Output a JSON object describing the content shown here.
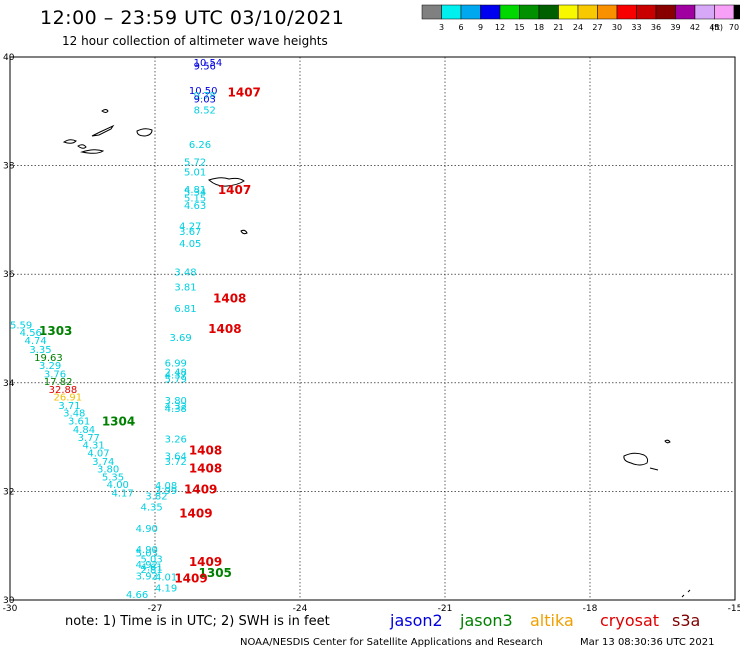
{
  "header": {
    "title": "12:00 – 23:59 UTC 03/10/2021",
    "subtitle": "12 hour collection of altimeter wave heights"
  },
  "legend": {
    "colors": [
      "#808080",
      "#00f0f0",
      "#00a8f0",
      "#0000f0",
      "#00d800",
      "#009000",
      "#006000",
      "#f8f800",
      "#f8c800",
      "#f89000",
      "#f80000",
      "#c80000",
      "#880000",
      "#a000a0",
      "#d8a8f8",
      "#f8a0f8",
      "#000000"
    ],
    "labels": [
      "3",
      "6",
      "9",
      "12",
      "15",
      "18",
      "21",
      "24",
      "27",
      "30",
      "33",
      "36",
      "39",
      "42",
      "45",
      "70"
    ],
    "unit": "(ft)"
  },
  "chart_data": {
    "type": "scatter",
    "xlim": [
      -30,
      -15
    ],
    "ylim": [
      30,
      40
    ],
    "x_ticks": [
      "-30",
      "-27",
      "-24",
      "-21",
      "-18",
      "-15"
    ],
    "y_ticks": [
      "40",
      "38",
      "36",
      "34",
      "32",
      "30"
    ],
    "grid": true,
    "satellite_colors": {
      "jason2": "#0000e0",
      "jason3": "#008000",
      "altika": "#f0a000",
      "cryosat": "#e00000",
      "s3a": "#800000",
      "swh_cyan": "#00d0e0"
    },
    "swh_points": [
      {
        "lon": -26.2,
        "lat": 39.83,
        "v": "10.54",
        "c": "#0000e0"
      },
      {
        "lon": -26.2,
        "lat": 39.77,
        "v": "9.56",
        "c": "#0000e0"
      },
      {
        "lon": -26.3,
        "lat": 39.32,
        "v": "10.50",
        "c": "#0000e0"
      },
      {
        "lon": -26.2,
        "lat": 39.23,
        "v": "9.78",
        "c": "#00d0e0"
      },
      {
        "lon": -26.2,
        "lat": 39.16,
        "v": "9.03",
        "c": "#0000e0"
      },
      {
        "lon": -26.2,
        "lat": 38.96,
        "v": "8.52",
        "c": "#00d0e0"
      },
      {
        "lon": -26.3,
        "lat": 38.32,
        "v": "6.26",
        "c": "#00d0e0"
      },
      {
        "lon": -26.4,
        "lat": 38.0,
        "v": "5.72",
        "c": "#00d0e0"
      },
      {
        "lon": -26.4,
        "lat": 37.82,
        "v": "5.01",
        "c": "#00d0e0"
      },
      {
        "lon": -26.4,
        "lat": 37.5,
        "v": "4.81",
        "c": "#00d0e0"
      },
      {
        "lon": -26.4,
        "lat": 37.45,
        "v": "5.34",
        "c": "#00d0e0"
      },
      {
        "lon": -26.4,
        "lat": 37.34,
        "v": "5.15",
        "c": "#00d0e0"
      },
      {
        "lon": -26.4,
        "lat": 37.2,
        "v": "4.63",
        "c": "#00d0e0"
      },
      {
        "lon": -26.5,
        "lat": 36.82,
        "v": "4.27",
        "c": "#00d0e0"
      },
      {
        "lon": -26.5,
        "lat": 36.72,
        "v": "3.67",
        "c": "#00d0e0"
      },
      {
        "lon": -26.5,
        "lat": 36.5,
        "v": "4.05",
        "c": "#00d0e0"
      },
      {
        "lon": -26.6,
        "lat": 35.98,
        "v": "3.48",
        "c": "#00d0e0"
      },
      {
        "lon": -26.6,
        "lat": 35.7,
        "v": "3.81",
        "c": "#00d0e0"
      },
      {
        "lon": -26.6,
        "lat": 35.3,
        "v": "6.81",
        "c": "#00d0e0"
      },
      {
        "lon": -26.7,
        "lat": 34.77,
        "v": "3.69",
        "c": "#00d0e0"
      },
      {
        "lon": -26.8,
        "lat": 34.3,
        "v": "6.99",
        "c": "#00d0e0"
      },
      {
        "lon": -26.8,
        "lat": 34.13,
        "v": "2.48",
        "c": "#00d0e0"
      },
      {
        "lon": -26.8,
        "lat": 34.01,
        "v": "5.79",
        "c": "#00d0e0"
      },
      {
        "lon": -26.8,
        "lat": 34.08,
        "v": "4.37",
        "c": "#00d0e0"
      },
      {
        "lon": -26.8,
        "lat": 33.61,
        "v": "3.80",
        "c": "#00d0e0"
      },
      {
        "lon": -26.8,
        "lat": 33.51,
        "v": "4.32",
        "c": "#00d0e0"
      },
      {
        "lon": -26.8,
        "lat": 33.46,
        "v": "4.38",
        "c": "#00d0e0"
      },
      {
        "lon": -26.8,
        "lat": 32.9,
        "v": "3.26",
        "c": "#00d0e0"
      },
      {
        "lon": -26.8,
        "lat": 32.59,
        "v": "3.64",
        "c": "#00d0e0"
      },
      {
        "lon": -26.8,
        "lat": 32.49,
        "v": "3.72",
        "c": "#00d0e0"
      },
      {
        "lon": -27.0,
        "lat": 32.04,
        "v": "4.08",
        "c": "#00d0e0"
      },
      {
        "lon": -27.0,
        "lat": 31.95,
        "v": "3.99",
        "c": "#00d0e0"
      },
      {
        "lon": -27.2,
        "lat": 31.85,
        "v": "3.82",
        "c": "#00d0e0"
      },
      {
        "lon": -27.3,
        "lat": 31.65,
        "v": "4.35",
        "c": "#00d0e0"
      },
      {
        "lon": -27.4,
        "lat": 31.25,
        "v": "4.90",
        "c": "#00d0e0"
      },
      {
        "lon": -27.4,
        "lat": 30.87,
        "v": "4.90",
        "c": "#00d0e0"
      },
      {
        "lon": -27.4,
        "lat": 30.8,
        "v": "5.03",
        "c": "#00d0e0"
      },
      {
        "lon": -27.3,
        "lat": 30.69,
        "v": "5.03",
        "c": "#00d0e0"
      },
      {
        "lon": -27.4,
        "lat": 30.59,
        "v": "4.92",
        "c": "#00d0e0"
      },
      {
        "lon": -27.3,
        "lat": 30.54,
        "v": "4.61",
        "c": "#00d0e0"
      },
      {
        "lon": -27.3,
        "lat": 30.5,
        "v": "2.81",
        "c": "#00d0e0"
      },
      {
        "lon": -27.4,
        "lat": 30.38,
        "v": "3.92",
        "c": "#00d0e0"
      },
      {
        "lon": -27.0,
        "lat": 30.36,
        "v": "4.01",
        "c": "#00d0e0"
      },
      {
        "lon": -27.0,
        "lat": 30.16,
        "v": "4.19",
        "c": "#00d0e0"
      },
      {
        "lon": -27.6,
        "lat": 30.04,
        "v": "4.66",
        "c": "#00d0e0"
      },
      {
        "lon": -30.0,
        "lat": 35.0,
        "v": "5.59",
        "c": "#00d0e0"
      },
      {
        "lon": -29.8,
        "lat": 34.86,
        "v": "4.56",
        "c": "#00d0e0"
      },
      {
        "lon": -29.7,
        "lat": 34.71,
        "v": "4.74",
        "c": "#00d0e0"
      },
      {
        "lon": -29.6,
        "lat": 34.55,
        "v": "3.35",
        "c": "#00d0e0"
      },
      {
        "lon": -29.5,
        "lat": 34.4,
        "v": "19.63",
        "c": "#008000"
      },
      {
        "lon": -29.4,
        "lat": 34.25,
        "v": "3.29",
        "c": "#00d0e0"
      },
      {
        "lon": -29.3,
        "lat": 34.1,
        "v": "3.76",
        "c": "#00d0e0"
      },
      {
        "lon": -29.3,
        "lat": 33.96,
        "v": "17.82",
        "c": "#008000"
      },
      {
        "lon": -29.2,
        "lat": 33.81,
        "v": "32.88",
        "c": "#e00000"
      },
      {
        "lon": -29.1,
        "lat": 33.67,
        "v": "26.91",
        "c": "#f0c000"
      },
      {
        "lon": -29.0,
        "lat": 33.52,
        "v": "3.71",
        "c": "#00d0e0"
      },
      {
        "lon": -28.9,
        "lat": 33.38,
        "v": "3.48",
        "c": "#00d0e0"
      },
      {
        "lon": -28.8,
        "lat": 33.23,
        "v": "3.61",
        "c": "#00d0e0"
      },
      {
        "lon": -28.7,
        "lat": 33.08,
        "v": "4.84",
        "c": "#00d0e0"
      },
      {
        "lon": -28.6,
        "lat": 32.93,
        "v": "3.77",
        "c": "#00d0e0"
      },
      {
        "lon": -28.5,
        "lat": 32.79,
        "v": "4.31",
        "c": "#00d0e0"
      },
      {
        "lon": -28.4,
        "lat": 32.64,
        "v": "4.07",
        "c": "#00d0e0"
      },
      {
        "lon": -28.3,
        "lat": 32.49,
        "v": "3.74",
        "c": "#00d0e0"
      },
      {
        "lon": -28.2,
        "lat": 32.35,
        "v": "3.80",
        "c": "#00d0e0"
      },
      {
        "lon": -28.1,
        "lat": 32.2,
        "v": "5.35",
        "c": "#00d0e0"
      },
      {
        "lon": -28.0,
        "lat": 32.06,
        "v": "4.00",
        "c": "#00d0e0"
      },
      {
        "lon": -27.9,
        "lat": 31.91,
        "v": "4.17",
        "c": "#00d0e0"
      }
    ],
    "time_labels": [
      {
        "lon": -25.5,
        "lat": 39.27,
        "t": "1407",
        "c": "#e00000"
      },
      {
        "lon": -25.7,
        "lat": 37.48,
        "t": "1407",
        "c": "#e00000"
      },
      {
        "lon": -25.8,
        "lat": 35.48,
        "t": "1408",
        "c": "#e00000"
      },
      {
        "lon": -25.9,
        "lat": 34.92,
        "t": "1408",
        "c": "#e00000"
      },
      {
        "lon": -29.4,
        "lat": 34.88,
        "t": "1303",
        "c": "#008000"
      },
      {
        "lon": -28.1,
        "lat": 33.21,
        "t": "1304",
        "c": "#008000"
      },
      {
        "lon": -26.3,
        "lat": 32.68,
        "t": "1408",
        "c": "#e00000"
      },
      {
        "lon": -26.3,
        "lat": 32.35,
        "t": "1408",
        "c": "#e00000"
      },
      {
        "lon": -26.4,
        "lat": 31.96,
        "t": "1409",
        "c": "#e00000"
      },
      {
        "lon": -26.5,
        "lat": 31.52,
        "t": "1409",
        "c": "#e00000"
      },
      {
        "lon": -26.3,
        "lat": 30.63,
        "t": "1409",
        "c": "#e00000"
      },
      {
        "lon": -26.1,
        "lat": 30.42,
        "t": "1305",
        "c": "#008000"
      },
      {
        "lon": -26.6,
        "lat": 30.32,
        "t": "1409",
        "c": "#e00000"
      }
    ]
  },
  "footer": {
    "note": "note: 1) Time is in UTC; 2) SWH is in feet",
    "satellites": [
      {
        "name": "jason2",
        "color": "#0000e0"
      },
      {
        "name": "jason3",
        "color": "#008000"
      },
      {
        "name": "altika",
        "color": "#f0a000"
      },
      {
        "name": "cryosat",
        "color": "#e00000"
      },
      {
        "name": "s3a",
        "color": "#800000"
      }
    ],
    "credit": "NOAA/NESDIS Center for Satellite Applications and Research",
    "generated": "Mar 13 08:30:36 UTC 2021"
  }
}
